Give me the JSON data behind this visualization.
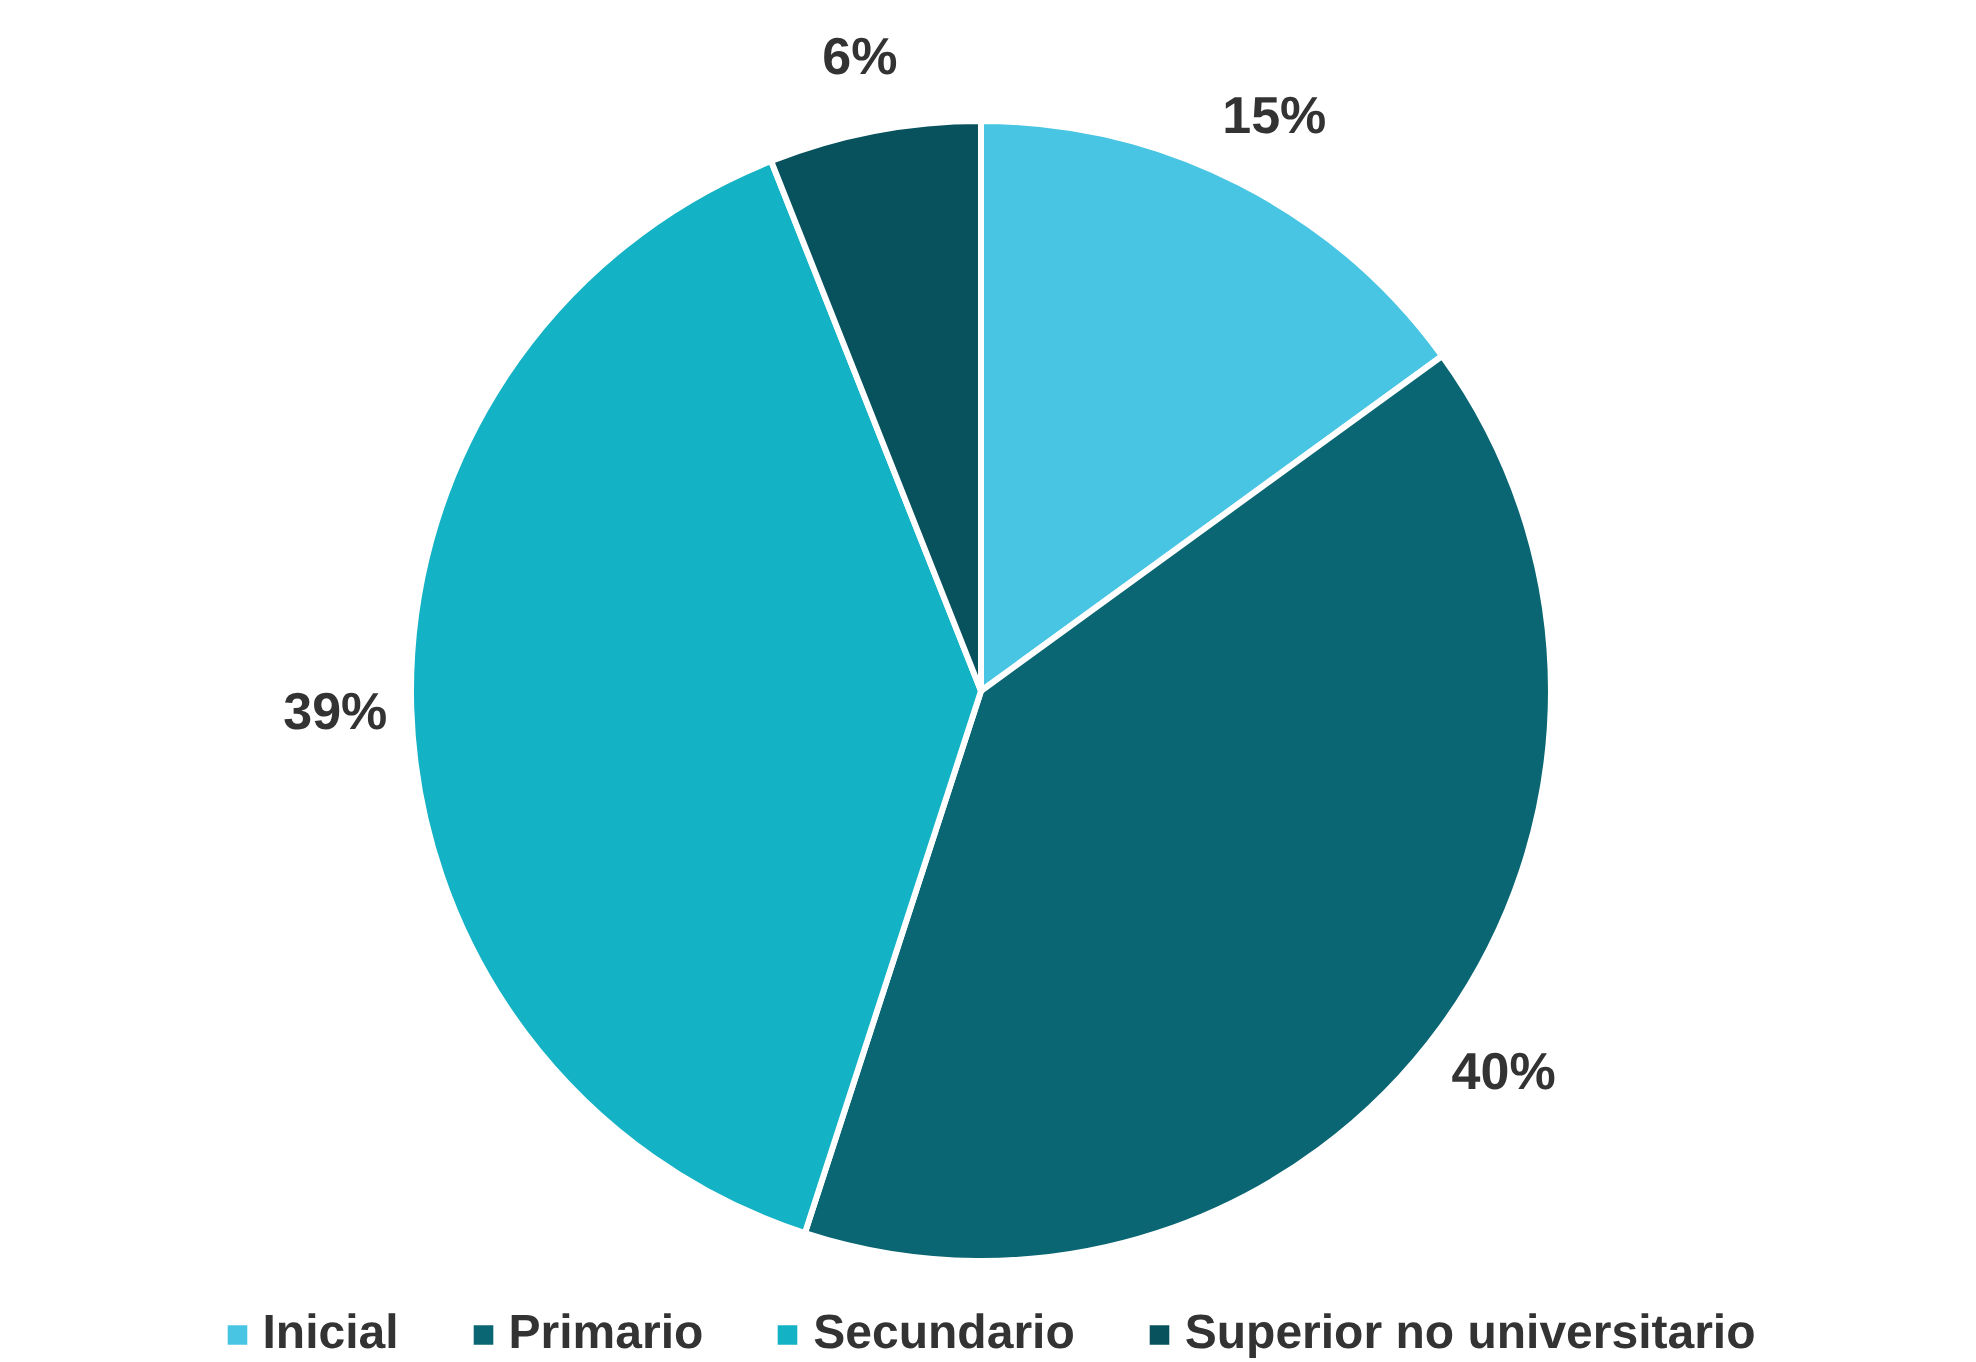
{
  "chart_data": {
    "type": "pie",
    "categories": [
      "Inicial",
      "Primario",
      "Secundario",
      "Superior no universitario"
    ],
    "values": [
      15,
      40,
      39,
      6
    ],
    "colors": [
      "#48c5e3",
      "#0a6672",
      "#13b2c4",
      "#08525e"
    ],
    "value_labels": [
      "15%",
      "40%",
      "39%",
      "6%"
    ],
    "legend": "bottom"
  }
}
